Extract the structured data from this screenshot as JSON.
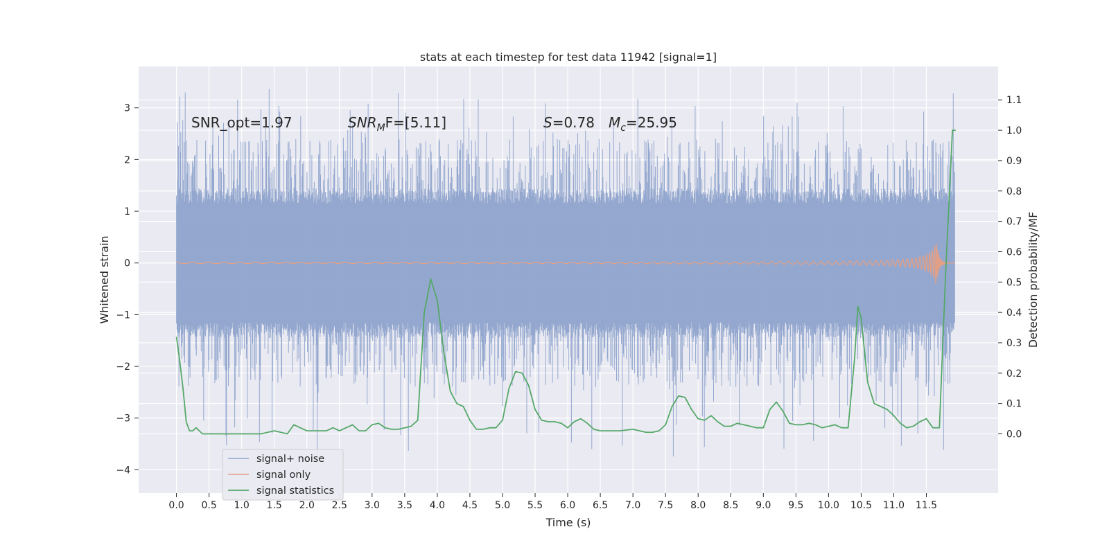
{
  "chart_data": {
    "type": "line",
    "title": "stats at each timestep for test data 11942 [signal=1]",
    "xlabel": "Time (s)",
    "ylabel_left": "Whitened strain",
    "ylabel_right": "Detection probability/MF",
    "xlim": [
      -0.58,
      12.6
    ],
    "ylim_left": [
      -4.45,
      3.8
    ],
    "ylim_right": [
      -0.195,
      1.21
    ],
    "x_ticks": [
      0.0,
      0.5,
      1.0,
      1.5,
      2.0,
      2.5,
      3.0,
      3.5,
      4.0,
      4.5,
      5.0,
      5.5,
      6.0,
      6.5,
      7.0,
      7.5,
      8.0,
      8.5,
      9.0,
      9.5,
      10.0,
      10.5,
      11.0,
      11.5
    ],
    "x_tick_labels": [
      "0.0",
      "0.5",
      "1.0",
      "1.5",
      "2.0",
      "2.5",
      "3.0",
      "3.5",
      "4.0",
      "4.5",
      "5.0",
      "5.5",
      "6.0",
      "6.5",
      "7.0",
      "7.5",
      "8.0",
      "8.5",
      "9.0",
      "9.5",
      "10.0",
      "10.5",
      "11.0",
      "11.5"
    ],
    "y_left_ticks": [
      3,
      2,
      1,
      0,
      -1,
      -2,
      -3,
      -4
    ],
    "y_left_tick_labels": [
      "3",
      "2",
      "1",
      "0",
      "−1",
      "−2",
      "−3",
      "−4"
    ],
    "y_right_ticks": [
      1.1,
      1.0,
      0.9,
      0.8,
      0.7,
      0.6,
      0.5,
      0.4,
      0.3,
      0.2,
      0.1,
      0.0
    ],
    "y_right_tick_labels": [
      "1.1",
      "1.0",
      "0.9",
      "0.8",
      "0.7",
      "0.6",
      "0.5",
      "0.4",
      "0.3",
      "0.2",
      "0.1",
      "0.0"
    ],
    "grid": true,
    "legend_position": "lower-left",
    "annotations": {
      "snr_opt": "SNR_opt=1.97",
      "snr_mf_main": "SNR",
      "snr_mf_sub": "M",
      "snr_mf_rest": "F=[5.11]",
      "s_main": "S",
      "s_rest": "=0.78",
      "mc_main": "M",
      "mc_sub": "c",
      "mc_rest": "=25.95"
    },
    "series": [
      {
        "name": "signal+ noise",
        "axis": "left",
        "color": "#8fa4cc",
        "style": "dense noise, envelope approx ±1.4 with peaks to about ±3.4",
        "x_range": [
          0.0,
          11.94
        ],
        "min_value": -3.9,
        "max_value": 3.4
      },
      {
        "name": "signal only",
        "axis": "left",
        "color": "#e0a088",
        "style": "chirp growing near merger",
        "x_range": [
          0.0,
          11.94
        ],
        "merger_time": 11.65,
        "peak_amplitude": 0.45
      },
      {
        "name": "signal statistics",
        "axis": "right",
        "color": "#55a868",
        "x": [
          0.0,
          0.05,
          0.1,
          0.15,
          0.2,
          0.25,
          0.3,
          0.35,
          0.4,
          0.5,
          0.6,
          0.7,
          0.8,
          0.9,
          1.0,
          1.1,
          1.2,
          1.3,
          1.4,
          1.5,
          1.6,
          1.7,
          1.8,
          1.9,
          2.0,
          2.1,
          2.2,
          2.3,
          2.4,
          2.5,
          2.6,
          2.7,
          2.8,
          2.9,
          3.0,
          3.1,
          3.2,
          3.3,
          3.4,
          3.5,
          3.6,
          3.7,
          3.8,
          3.9,
          4.0,
          4.1,
          4.2,
          4.3,
          4.4,
          4.5,
          4.6,
          4.7,
          4.8,
          4.9,
          5.0,
          5.1,
          5.2,
          5.3,
          5.4,
          5.5,
          5.6,
          5.7,
          5.8,
          5.9,
          6.0,
          6.1,
          6.2,
          6.3,
          6.4,
          6.5,
          6.6,
          6.8,
          7.0,
          7.2,
          7.3,
          7.4,
          7.5,
          7.6,
          7.7,
          7.8,
          7.9,
          8.0,
          8.1,
          8.2,
          8.3,
          8.4,
          8.5,
          8.6,
          8.7,
          8.8,
          8.9,
          9.0,
          9.1,
          9.2,
          9.3,
          9.4,
          9.5,
          9.6,
          9.7,
          9.8,
          9.9,
          10.0,
          10.1,
          10.2,
          10.3,
          10.4,
          10.45,
          10.5,
          10.6,
          10.7,
          10.8,
          10.9,
          11.0,
          11.1,
          11.2,
          11.3,
          11.4,
          11.5,
          11.6,
          11.7,
          11.8,
          11.9,
          11.95
        ],
        "values": [
          0.32,
          0.24,
          0.15,
          0.04,
          0.01,
          0.01,
          0.02,
          0.01,
          0.0,
          0.0,
          0.0,
          0.0,
          0.0,
          0.0,
          0.0,
          0.0,
          0.0,
          0.0,
          0.005,
          0.01,
          0.005,
          0.0,
          0.03,
          0.02,
          0.01,
          0.01,
          0.01,
          0.01,
          0.02,
          0.01,
          0.02,
          0.03,
          0.01,
          0.01,
          0.03,
          0.035,
          0.02,
          0.015,
          0.015,
          0.02,
          0.025,
          0.045,
          0.4,
          0.51,
          0.44,
          0.27,
          0.14,
          0.1,
          0.09,
          0.045,
          0.015,
          0.015,
          0.02,
          0.02,
          0.045,
          0.15,
          0.205,
          0.2,
          0.16,
          0.08,
          0.045,
          0.04,
          0.04,
          0.035,
          0.02,
          0.04,
          0.05,
          0.035,
          0.015,
          0.01,
          0.01,
          0.01,
          0.015,
          0.005,
          0.005,
          0.01,
          0.03,
          0.09,
          0.125,
          0.12,
          0.08,
          0.05,
          0.045,
          0.06,
          0.04,
          0.025,
          0.025,
          0.035,
          0.03,
          0.025,
          0.02,
          0.02,
          0.08,
          0.105,
          0.075,
          0.035,
          0.03,
          0.03,
          0.035,
          0.03,
          0.02,
          0.025,
          0.03,
          0.02,
          0.02,
          0.25,
          0.42,
          0.38,
          0.17,
          0.1,
          0.09,
          0.08,
          0.06,
          0.035,
          0.02,
          0.025,
          0.04,
          0.05,
          0.02,
          0.02,
          0.55,
          1.0,
          1.0
        ]
      }
    ]
  }
}
